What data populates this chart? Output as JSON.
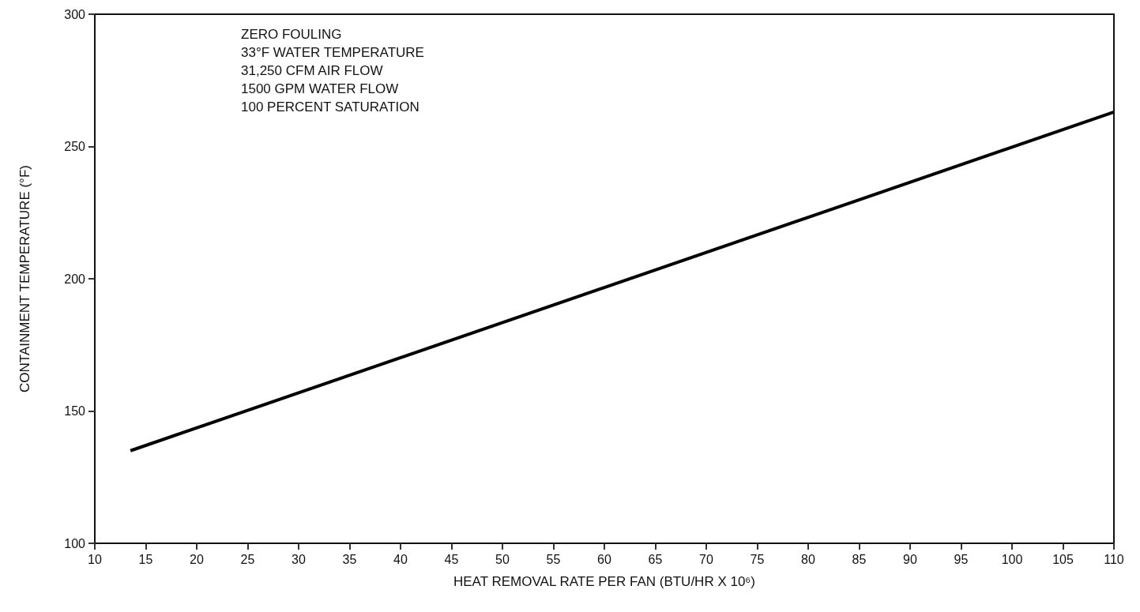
{
  "chart_data": {
    "type": "line",
    "xlabel": "HEAT REMOVAL RATE PER FAN (BTU/HR X 10⁶)",
    "ylabel": "CONTAINMENT TEMPERATURE (°F)",
    "annotations": [
      "ZERO FOULING",
      "33°F WATER TEMPERATURE",
      "31,250 CFM AIR FLOW",
      "1500 GPM WATER FLOW",
      "100 PERCENT SATURATION"
    ],
    "series": [
      {
        "color": "#000000",
        "x": [
          13.5,
          110
        ],
        "values": [
          135,
          263
        ]
      }
    ],
    "xlim": [
      10,
      110
    ],
    "xticks": [
      10,
      15,
      20,
      25,
      30,
      35,
      40,
      45,
      50,
      55,
      60,
      65,
      70,
      75,
      80,
      85,
      90,
      95,
      100,
      105,
      110
    ],
    "ylim": [
      100,
      300
    ],
    "yticks": [
      100,
      150,
      200,
      250,
      300
    ],
    "grid": false,
    "marker": "none",
    "line_style": "solid"
  }
}
